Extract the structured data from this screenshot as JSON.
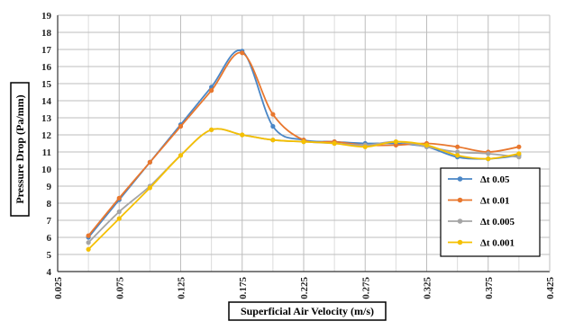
{
  "chart_data": {
    "type": "line",
    "xlabel": "Superficial Air Velocity (m/s)",
    "ylabel": "Pressure Drop (Pa/mm)",
    "xlim": [
      0.025,
      0.425
    ],
    "ylim": [
      4,
      19
    ],
    "x_ticks": [
      "0.025",
      "0.075",
      "0.125",
      "0.175",
      "0.225",
      "0.275",
      "0.325",
      "0.375",
      "0.425"
    ],
    "y_ticks": [
      "4",
      "5",
      "6",
      "7",
      "8",
      "9",
      "10",
      "11",
      "12",
      "13",
      "14",
      "15",
      "16",
      "17",
      "18",
      "19"
    ],
    "grid": true,
    "legend_position": "right",
    "x": [
      0.05,
      0.075,
      0.1,
      0.125,
      0.15,
      0.175,
      0.2,
      0.225,
      0.25,
      0.275,
      0.3,
      0.325,
      0.35,
      0.375,
      0.4
    ],
    "series": [
      {
        "name": "Δt 0.05",
        "color": "#4a86c6",
        "values": [
          6.0,
          8.2,
          10.4,
          12.6,
          14.8,
          16.9,
          12.5,
          11.7,
          11.6,
          11.5,
          11.5,
          11.3,
          10.7,
          10.6,
          10.8
        ]
      },
      {
        "name": "Δt 0.01",
        "color": "#e8772e",
        "values": [
          6.1,
          8.3,
          10.4,
          12.5,
          14.6,
          16.8,
          13.2,
          11.7,
          11.6,
          11.4,
          11.4,
          11.5,
          11.3,
          11.0,
          11.3
        ]
      },
      {
        "name": "Δt 0.005",
        "color": "#a5a5a5",
        "values": [
          5.7,
          7.5,
          9.0,
          10.8,
          12.3,
          12.0,
          11.7,
          11.6,
          11.5,
          11.4,
          11.6,
          11.3,
          11.0,
          10.9,
          10.7
        ]
      },
      {
        "name": "Δt 0.001",
        "color": "#f5c000",
        "values": [
          5.3,
          7.1,
          8.9,
          10.8,
          12.3,
          12.0,
          11.7,
          11.6,
          11.5,
          11.3,
          11.6,
          11.4,
          10.8,
          10.6,
          10.9
        ]
      }
    ]
  }
}
